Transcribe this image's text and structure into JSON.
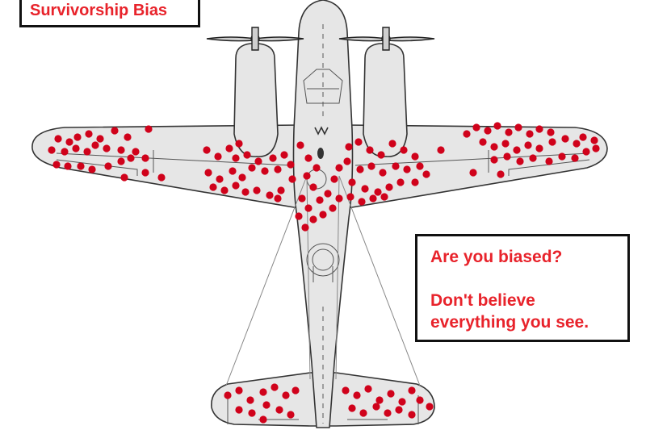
{
  "title": "Survivorship Bias",
  "question": "Are you biased?",
  "message": "Don't believe everything you see.",
  "colors": {
    "hit_marker": "#d0021b",
    "text_accent": "#e8232b",
    "plane_fill": "#e6e6e6",
    "outline": "#333333"
  }
}
